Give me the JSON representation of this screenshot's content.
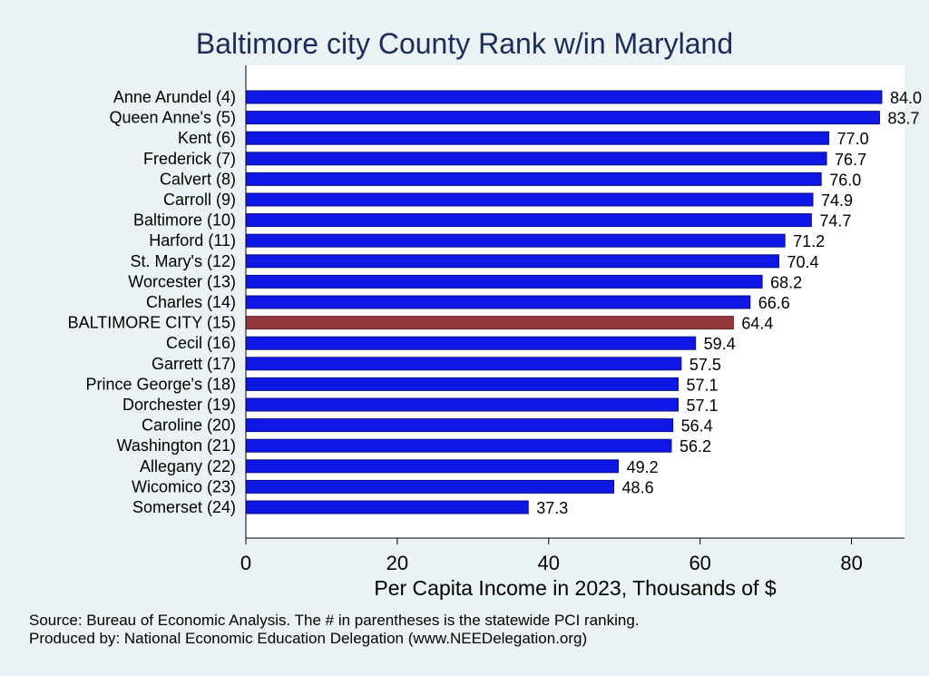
{
  "chart_data": {
    "type": "bar",
    "orientation": "horizontal",
    "title": "Baltimore city County Rank w/in Maryland",
    "xlabel": "Per Capita Income in 2023, Thousands of $",
    "ylabel": "",
    "xlim": [
      0,
      87
    ],
    "xticks": [
      0,
      20,
      40,
      60,
      80
    ],
    "grid": false,
    "categories": [
      "Anne Arundel  (4)",
      "Queen Anne's  (5)",
      "Kent  (6)",
      "Frederick  (7)",
      "Calvert  (8)",
      "Carroll  (9)",
      "Baltimore (10)",
      "Harford (11)",
      "St. Mary's (12)",
      "Worcester (13)",
      "Charles (14)",
      "BALTIMORE CITY (15)",
      "Cecil (16)",
      "Garrett (17)",
      "Prince George's (18)",
      "Dorchester (19)",
      "Caroline (20)",
      "Washington (21)",
      "Allegany (22)",
      "Wicomico (23)",
      "Somerset (24)"
    ],
    "values": [
      84.0,
      83.7,
      77.0,
      76.7,
      76.0,
      74.9,
      74.7,
      71.2,
      70.4,
      68.2,
      66.6,
      64.4,
      59.4,
      57.5,
      57.1,
      57.1,
      56.4,
      56.2,
      49.2,
      48.6,
      37.3
    ],
    "value_labels": [
      "84.0",
      "83.7",
      "77.0",
      "76.7",
      "76.0",
      "74.9",
      "74.7",
      "71.2",
      "70.4",
      "68.2",
      "66.6",
      "64.4",
      "59.4",
      "57.5",
      "57.1",
      "57.1",
      "56.4",
      "56.2",
      "49.2",
      "48.6",
      "37.3"
    ],
    "highlight_index": 11,
    "colors": {
      "bar": "#0f17e6",
      "highlight": "#93383a",
      "plot_bg": "#ffffff",
      "page_bg": "#eaf2f3",
      "title": "#1a2d5a"
    },
    "footnotes": [
      "Source: Bureau of Economic Analysis. The # in parentheses is the statewide PCI ranking.",
      "Produced by: National Economic Education Delegation (www.NEEDelegation.org)"
    ]
  }
}
